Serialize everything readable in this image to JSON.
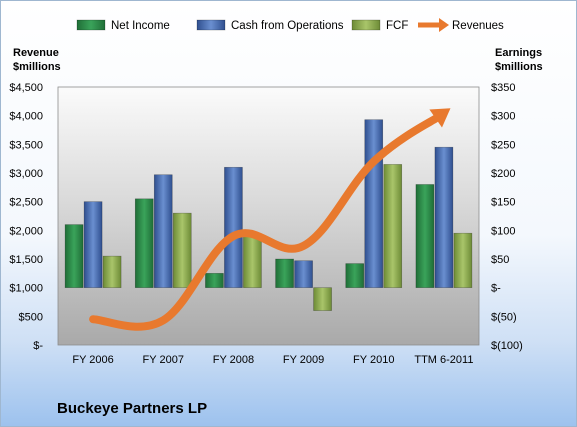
{
  "chart_data": {
    "type": "bar",
    "title": "Buckeye Partners LP",
    "categories": [
      "FY 2006",
      "FY 2007",
      "FY 2008",
      "FY 2009",
      "FY 2010",
      "TTM 6-2011"
    ],
    "left_axis": {
      "label_line1": "Revenue",
      "label_line2": "$millions",
      "ylim": [
        0,
        4500
      ],
      "ticks": [
        "$-",
        "$500",
        "$1,000",
        "$1,500",
        "$2,000",
        "$2,500",
        "$3,000",
        "$3,500",
        "$4,000",
        "$4,500"
      ]
    },
    "right_axis": {
      "label_line1": "Earnings",
      "label_line2": "$millions",
      "ylim": [
        -100,
        350
      ],
      "ticks": [
        "$(100)",
        "$(50)",
        "$-",
        "$50",
        "$100",
        "$150",
        "$200",
        "$250",
        "$300",
        "$350"
      ]
    },
    "series": [
      {
        "name": "Net Income",
        "axis": "right",
        "kind": "bar",
        "color": "#2e8b4a",
        "values": [
          110,
          155,
          25,
          50,
          42,
          180
        ]
      },
      {
        "name": "Cash from Operations",
        "axis": "right",
        "kind": "bar",
        "color": "#4a6fb5",
        "values": [
          150,
          197,
          210,
          47,
          293,
          245
        ]
      },
      {
        "name": "FCF",
        "axis": "right",
        "kind": "bar",
        "color": "#8fae4f",
        "values": [
          55,
          130,
          90,
          -40,
          215,
          95
        ]
      },
      {
        "name": "Revenues",
        "axis": "left",
        "kind": "line",
        "color": "#e8792e",
        "values": [
          450,
          430,
          1900,
          1730,
          3200,
          4050
        ]
      }
    ],
    "legend_position": "top",
    "grid": false
  }
}
